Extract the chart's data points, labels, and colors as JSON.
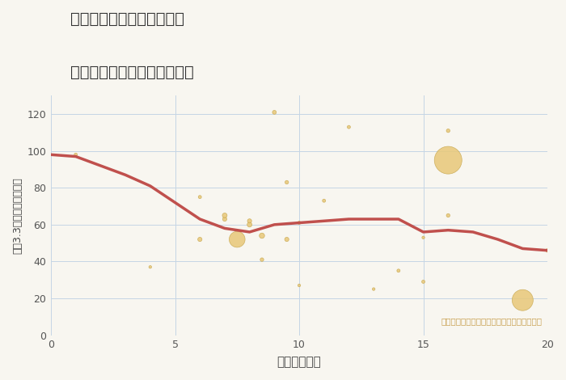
{
  "title1": "岐阜県羽島郡笠松町泉町の",
  "title2": "駅距離別中古マンション価格",
  "xlabel": "駅距離（分）",
  "ylabel": "坪（3.3㎡）単価（万円）",
  "background_color": "#f8f6f0",
  "plot_bg_color": "#f8f6f0",
  "grid_color": "#c5d5e5",
  "bubble_color": "#e8c878",
  "bubble_edge_color": "#c8a850",
  "line_color": "#c0504d",
  "annotation_color": "#c8a050",
  "annotation_text": "円の大きさは、取引のあった物件面積を示す",
  "xlim": [
    0,
    20
  ],
  "ylim": [
    0,
    130
  ],
  "xticks": [
    0,
    5,
    10,
    15,
    20
  ],
  "yticks": [
    0,
    20,
    40,
    60,
    80,
    100,
    120
  ],
  "scatter_x": [
    1,
    4,
    6,
    6,
    7,
    7,
    7.5,
    8,
    8,
    8.5,
    8.5,
    9,
    9.5,
    9.5,
    10,
    10,
    11,
    12,
    13,
    14,
    15,
    15,
    16,
    16,
    16,
    19,
    20
  ],
  "scatter_y": [
    98,
    37,
    75,
    52,
    63,
    65,
    52,
    60,
    62,
    41,
    54,
    121,
    83,
    52,
    61,
    27,
    73,
    113,
    25,
    35,
    29,
    53,
    95,
    65,
    111,
    19,
    46
  ],
  "scatter_size": [
    8,
    6,
    8,
    14,
    14,
    18,
    200,
    18,
    14,
    10,
    22,
    12,
    10,
    14,
    8,
    6,
    8,
    8,
    6,
    8,
    8,
    6,
    600,
    10,
    10,
    350,
    10
  ],
  "trend_x": [
    0,
    1,
    2,
    3,
    4,
    5,
    6,
    7,
    8,
    9,
    10,
    11,
    12,
    13,
    14,
    15,
    16,
    17,
    18,
    19,
    20
  ],
  "trend_y": [
    98,
    97,
    92,
    87,
    81,
    72,
    63,
    58,
    56,
    60,
    61,
    62,
    63,
    63,
    63,
    56,
    57,
    56,
    52,
    47,
    46
  ]
}
